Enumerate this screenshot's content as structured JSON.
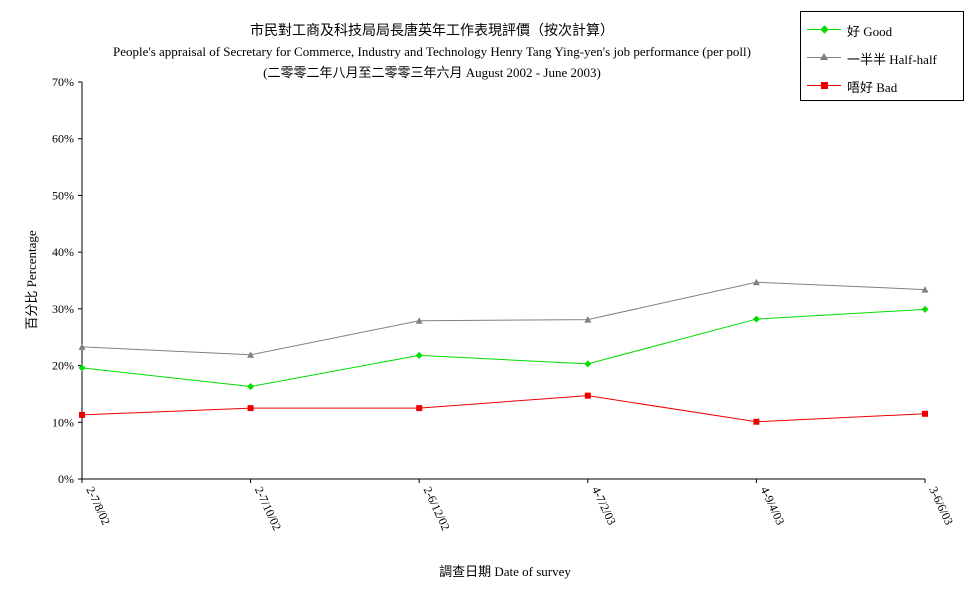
{
  "chart_data": {
    "type": "line",
    "title": "市民對工商及科技局局長唐英年工作表現評價（按次計算）",
    "subtitle": "People's appraisal of Secretary for Commerce, Industry and Technology Henry Tang Ying-yen's job performance (per poll)",
    "subtitle2": "(二零零二年八月至二零零三年六月 August 2002 - June 2003)",
    "xlabel": "調查日期 Date of survey",
    "ylabel": "百分比 Percentage",
    "categories": [
      "2-7/8/02",
      "2-7/10/02",
      "2-6/12/02",
      "4-7/2/03",
      "4-9/4/03",
      "3-6/6/03"
    ],
    "ylim": [
      0,
      70
    ],
    "yticks": [
      "0%",
      "10%",
      "20%",
      "30%",
      "40%",
      "50%",
      "60%",
      "70%"
    ],
    "legend_position": "top-right",
    "series": [
      {
        "name": "好 Good",
        "color": "#00dd00",
        "marker": "diamond",
        "values": [
          19.6,
          16.3,
          21.8,
          20.3,
          28.2,
          29.9
        ]
      },
      {
        "name": "一半半 Half-half",
        "color": "#808080",
        "marker": "triangle",
        "values": [
          23.3,
          21.9,
          27.9,
          28.1,
          34.7,
          33.4
        ]
      },
      {
        "name": "唔好 Bad",
        "color": "#ee0000",
        "marker": "square",
        "values": [
          11.3,
          12.5,
          12.5,
          14.7,
          10.1,
          11.5
        ]
      }
    ]
  }
}
